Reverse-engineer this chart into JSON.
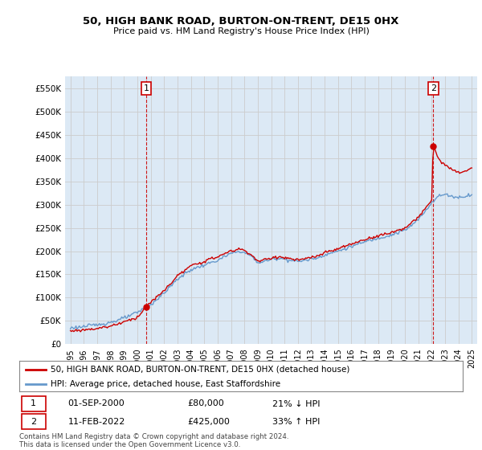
{
  "title": "50, HIGH BANK ROAD, BURTON-ON-TRENT, DE15 0HX",
  "subtitle": "Price paid vs. HM Land Registry's House Price Index (HPI)",
  "legend_line1": "50, HIGH BANK ROAD, BURTON-ON-TRENT, DE15 0HX (detached house)",
  "legend_line2": "HPI: Average price, detached house, East Staffordshire",
  "annotation1_label": "1",
  "annotation1_date": "01-SEP-2000",
  "annotation1_price": "£80,000",
  "annotation1_hpi": "21% ↓ HPI",
  "annotation2_label": "2",
  "annotation2_date": "11-FEB-2022",
  "annotation2_price": "£425,000",
  "annotation2_hpi": "33% ↑ HPI",
  "footnote": "Contains HM Land Registry data © Crown copyright and database right 2024.\nThis data is licensed under the Open Government Licence v3.0.",
  "hpi_color": "#6699cc",
  "price_color": "#cc0000",
  "bg_fill_color": "#dce9f5",
  "marker_color": "#cc0000",
  "annotation_box_color": "#cc0000",
  "ylim": [
    0,
    575000
  ],
  "yticks": [
    0,
    50000,
    100000,
    150000,
    200000,
    250000,
    300000,
    350000,
    400000,
    450000,
    500000,
    550000
  ],
  "ytick_labels": [
    "£0",
    "£50K",
    "£100K",
    "£150K",
    "£200K",
    "£250K",
    "£300K",
    "£350K",
    "£400K",
    "£450K",
    "£500K",
    "£550K"
  ],
  "background_color": "#ffffff",
  "grid_color": "#cccccc",
  "purchase1_x": 2000.667,
  "purchase1_y": 80000,
  "purchase2_x": 2022.11,
  "purchase2_y": 425000,
  "xlim_min": 1994.6,
  "xlim_max": 2025.4
}
